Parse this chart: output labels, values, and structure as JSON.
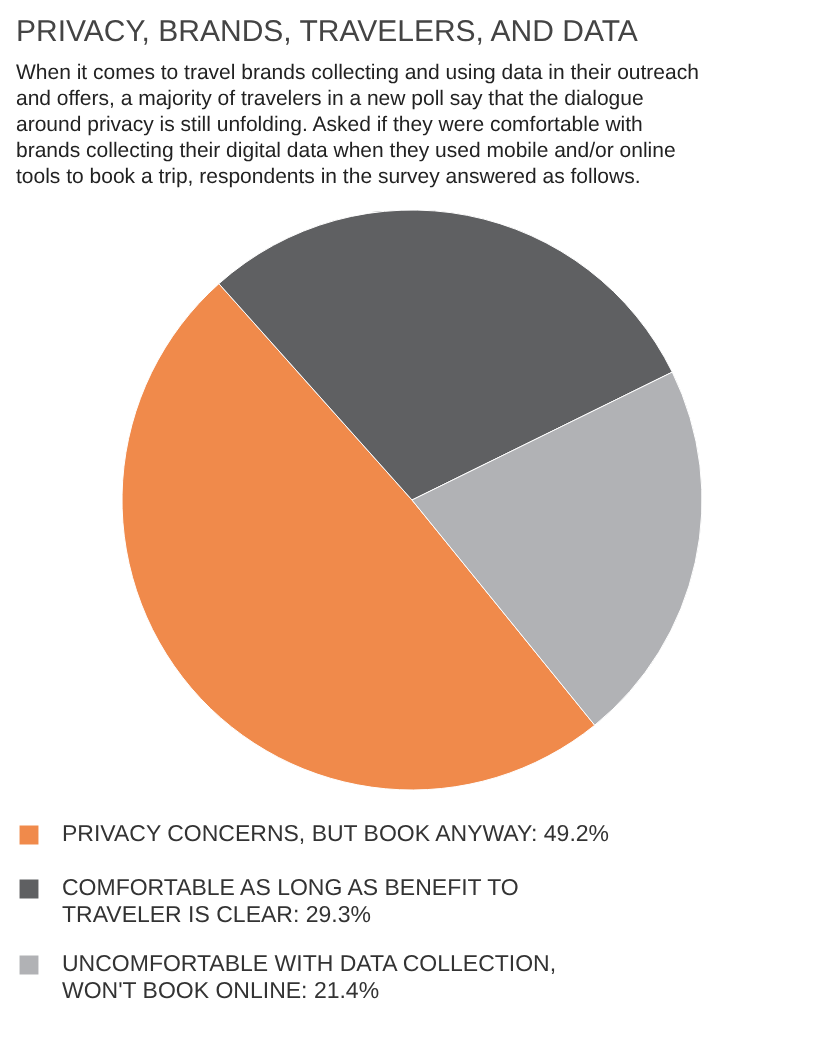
{
  "chart_data": {
    "type": "pie",
    "title": "PRIVACY, BRANDS, TRAVELERS, AND DATA",
    "subtitle": "When it comes to travel brands collecting and using data in their outreach and offers, a majority of travelers in a new poll say that the dialogue around privacy is still unfolding. Asked if they were comfortable with brands collecting their digital data when they used mobile and/or online tools to book a trip, respondents in the survey answered as follows.",
    "categories": [
      "PRIVACY CONCERNS, BUT BOOK ANYWAY",
      "COMFORTABLE AS LONG AS BENEFIT TO TRAVELER IS CLEAR",
      "UNCOMFORTABLE WITH DATA COLLECTION, WON'T BOOK ONLINE"
    ],
    "values": [
      49.2,
      29.3,
      21.4
    ],
    "value_labels": [
      "49.2%",
      "29.3%",
      "21.4%"
    ],
    "colors": [
      "#f08a4b",
      "#5f6062",
      "#b1b2b5"
    ],
    "legend": "bottom"
  }
}
